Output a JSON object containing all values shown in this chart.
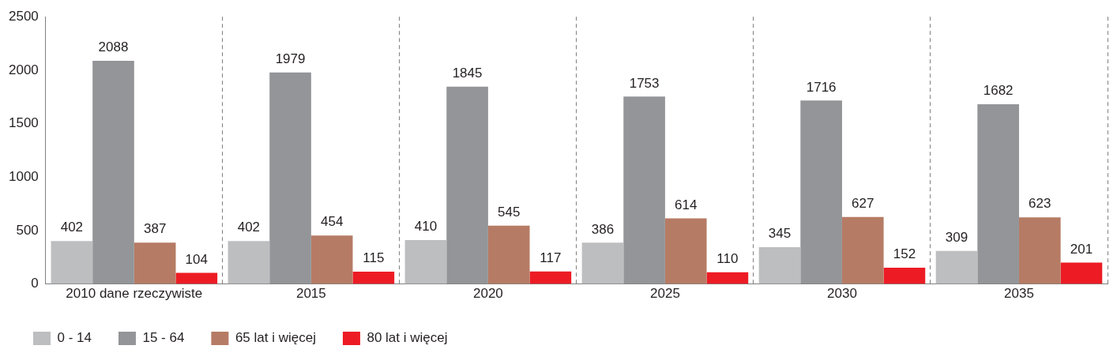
{
  "chart_data": {
    "type": "bar",
    "categories": [
      "2010 dane rzeczywiste",
      "2015",
      "2020",
      "2025",
      "2030",
      "2035"
    ],
    "series": [
      {
        "name": "0 - 14",
        "color": "#bcbec0",
        "values": [
          402,
          402,
          410,
          386,
          345,
          309
        ]
      },
      {
        "name": "15 - 64",
        "color": "#939598",
        "values": [
          2088,
          1979,
          1845,
          1753,
          1716,
          1682
        ]
      },
      {
        "name": "65 lat i więcej",
        "color": "#b67b65",
        "values": [
          387,
          454,
          545,
          614,
          627,
          623
        ]
      },
      {
        "name": "80 lat i więcej",
        "color": "#ed1c24",
        "values": [
          104,
          115,
          117,
          110,
          152,
          201
        ]
      }
    ],
    "ylim": [
      0,
      2500
    ],
    "yticks": [
      0,
      500,
      1000,
      1500,
      2000,
      2500
    ],
    "grid": "x",
    "legend": "bottom left",
    "data_labels": true
  }
}
